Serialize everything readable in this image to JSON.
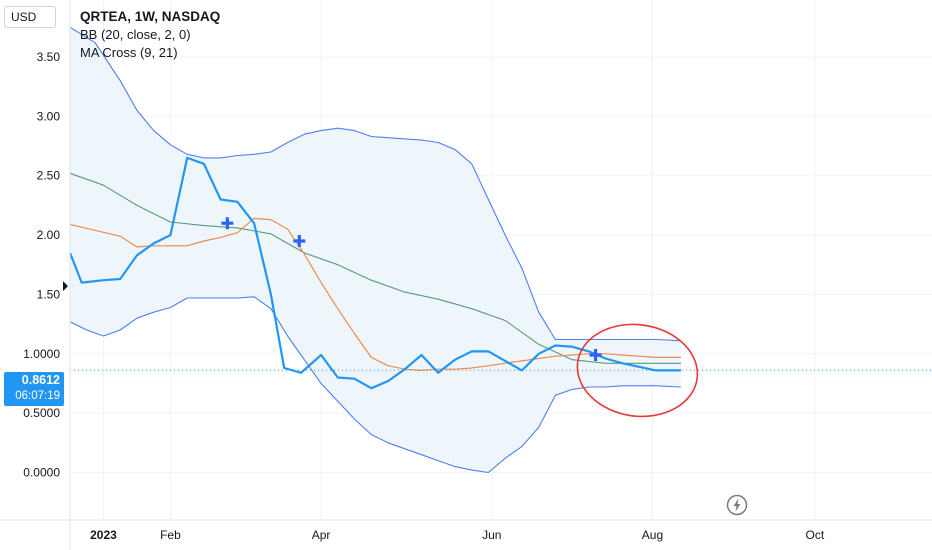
{
  "currency_label": "USD",
  "legend": {
    "title": "QRTEA, 1W, NASDAQ",
    "bb": "BB (20, close, 2, 0)",
    "ma": "MA Cross (9, 21)"
  },
  "price_badge": {
    "value": "0.8612",
    "countdown": "06:07:19"
  },
  "colors": {
    "price": "#2196f3",
    "bb_band": "#4f7ef0",
    "bb_basis": "#5a9a78",
    "ma_fast": "#f08a4b",
    "bb_fill": "#eef6fc",
    "annotation": "#e53935",
    "cross": "#2962ff"
  },
  "icons": {
    "replay": "lightning-icon"
  },
  "chart_data": {
    "type": "line",
    "title": "QRTEA, 1W, NASDAQ",
    "ylim": [
      -0.4,
      3.98
    ],
    "y_ticks": [
      "3.50",
      "3.00",
      "2.50",
      "2.00",
      "1.50",
      "1.0000",
      "0.5000",
      "0.0000"
    ],
    "y_tick_values": [
      3.5,
      3.0,
      2.5,
      2.0,
      1.5,
      1.0,
      0.5,
      0.0
    ],
    "x_ticks": [
      "2023",
      "Feb",
      "Apr",
      "Jun",
      "Aug",
      "Oct"
    ],
    "x_tick_weeks": [
      2,
      6,
      15,
      25.2,
      34.8,
      44.5
    ],
    "xlim": [
      0,
      51.5
    ],
    "grid": true,
    "series": [
      {
        "id": "price",
        "x": [
          0,
          0.7,
          2,
          3,
          4,
          5,
          6,
          7,
          8,
          9,
          10,
          11,
          12,
          12.8,
          13.8,
          15,
          16,
          17,
          18,
          19,
          20,
          21,
          22,
          23,
          24,
          25,
          26,
          27,
          28,
          29,
          30,
          31,
          32,
          33,
          34,
          35,
          36.5
        ],
        "values": [
          1.85,
          1.6,
          1.62,
          1.63,
          1.83,
          1.93,
          2.0,
          2.65,
          2.6,
          2.3,
          2.28,
          2.1,
          1.5,
          0.88,
          0.84,
          0.99,
          0.8,
          0.79,
          0.71,
          0.77,
          0.87,
          0.99,
          0.84,
          0.95,
          1.02,
          1.02,
          0.94,
          0.86,
          1.0,
          1.07,
          1.06,
          1.02,
          0.96,
          0.92,
          0.89,
          0.86,
          0.86
        ]
      },
      {
        "id": "bb_upper",
        "x": [
          0,
          1.5,
          3,
          4,
          5,
          6,
          7,
          8,
          9,
          10,
          11,
          12,
          13,
          14,
          15,
          16,
          17,
          18,
          19,
          20,
          21,
          22,
          23,
          24,
          25,
          26,
          27,
          28,
          29,
          30,
          31,
          32,
          33,
          34,
          35,
          36.5
        ],
        "values": [
          3.75,
          3.62,
          3.3,
          3.05,
          2.88,
          2.76,
          2.68,
          2.65,
          2.65,
          2.67,
          2.68,
          2.7,
          2.78,
          2.85,
          2.88,
          2.9,
          2.88,
          2.83,
          2.82,
          2.81,
          2.8,
          2.78,
          2.72,
          2.6,
          2.3,
          2.0,
          1.72,
          1.35,
          1.12,
          1.12,
          1.12,
          1.12,
          1.12,
          1.12,
          1.12,
          1.11
        ]
      },
      {
        "id": "bb_lower",
        "x": [
          0,
          1,
          2,
          3,
          4,
          5,
          6,
          7,
          8,
          9,
          10,
          11,
          12,
          13,
          14,
          15,
          16,
          17,
          18,
          19,
          20,
          21,
          22,
          23,
          24,
          25,
          26,
          27,
          28,
          29,
          30,
          31,
          32,
          33,
          34,
          35,
          36.5
        ],
        "values": [
          1.27,
          1.2,
          1.15,
          1.2,
          1.3,
          1.35,
          1.39,
          1.47,
          1.47,
          1.47,
          1.47,
          1.48,
          1.38,
          1.15,
          0.95,
          0.75,
          0.6,
          0.45,
          0.32,
          0.25,
          0.2,
          0.15,
          0.1,
          0.05,
          0.02,
          0.0,
          0.12,
          0.22,
          0.38,
          0.65,
          0.7,
          0.72,
          0.72,
          0.73,
          0.73,
          0.73,
          0.72
        ]
      },
      {
        "id": "bb_basis",
        "x": [
          0,
          2,
          4,
          6,
          8,
          10,
          12,
          14,
          16,
          18,
          20,
          22,
          24,
          26,
          28,
          30,
          32,
          34,
          36.5
        ],
        "values": [
          2.52,
          2.42,
          2.25,
          2.11,
          2.08,
          2.06,
          2.01,
          1.85,
          1.75,
          1.62,
          1.52,
          1.46,
          1.38,
          1.28,
          1.08,
          0.95,
          0.92,
          0.92,
          0.92
        ]
      },
      {
        "id": "ma_fast",
        "x": [
          0,
          1.5,
          3,
          4,
          5,
          6,
          7,
          8,
          9,
          10,
          11,
          12,
          13,
          14,
          15,
          16,
          17,
          18,
          19,
          20,
          21,
          22,
          23,
          24,
          25,
          26,
          27,
          28,
          29,
          30,
          31,
          32,
          33,
          34,
          35,
          36.5
        ],
        "values": [
          2.09,
          2.04,
          1.99,
          1.9,
          1.91,
          1.91,
          1.91,
          1.95,
          1.98,
          2.02,
          2.14,
          2.13,
          2.05,
          1.84,
          1.6,
          1.38,
          1.17,
          0.97,
          0.9,
          0.87,
          0.86,
          0.87,
          0.87,
          0.88,
          0.9,
          0.92,
          0.94,
          0.96,
          0.98,
          0.99,
          1.0,
          1.0,
          0.99,
          0.98,
          0.97,
          0.97
        ]
      }
    ],
    "cross_markers": [
      {
        "x": 9.4,
        "y": 2.1
      },
      {
        "x": 13.7,
        "y": 1.95
      },
      {
        "x": 31.4,
        "y": 0.99
      }
    ],
    "annotation": {
      "type": "ellipse",
      "cx_week": 33.9,
      "cy_value": 0.86,
      "rx_weeks": 3.6,
      "ry_value": 0.385
    }
  }
}
